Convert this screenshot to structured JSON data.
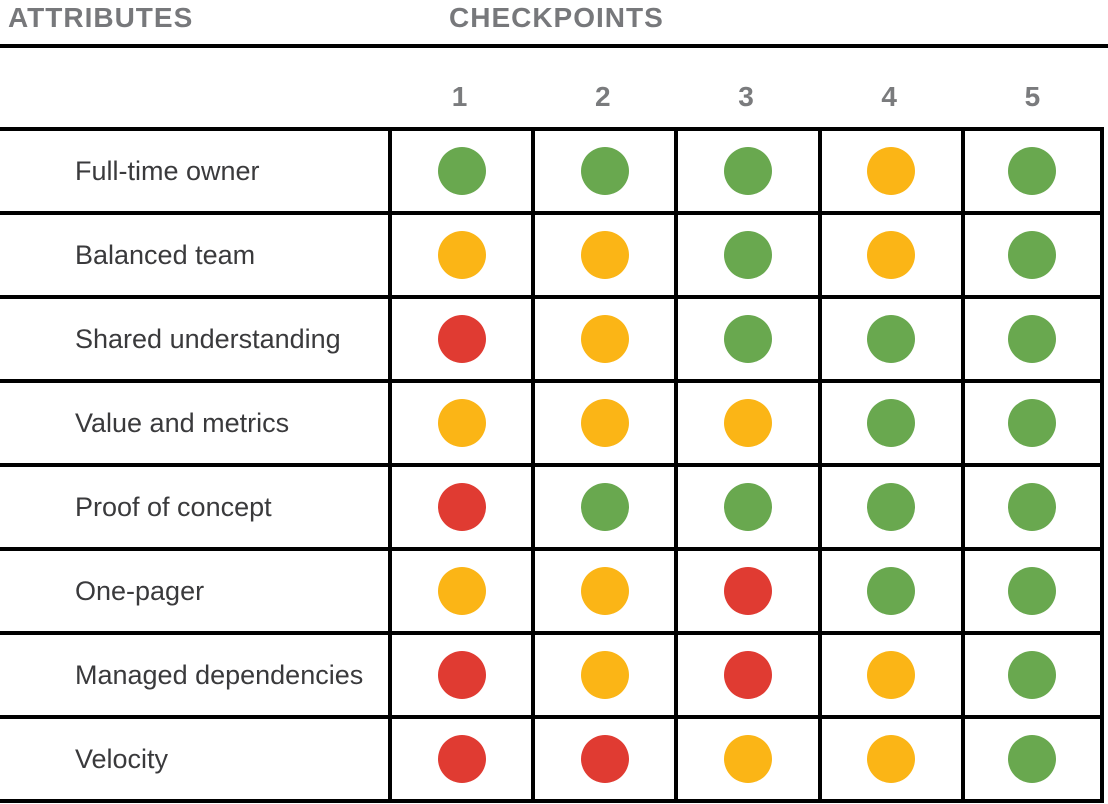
{
  "header": {
    "attributes_label": "ATTRIBUTES",
    "checkpoints_label": "CHECKPOINTS"
  },
  "checkpoints": [
    "1",
    "2",
    "3",
    "4",
    "5"
  ],
  "rows": [
    {
      "label": "Full-time owner",
      "statuses": [
        "green",
        "green",
        "green",
        "yellow",
        "green"
      ]
    },
    {
      "label": "Balanced team",
      "statuses": [
        "yellow",
        "yellow",
        "green",
        "yellow",
        "green"
      ]
    },
    {
      "label": "Shared understanding",
      "statuses": [
        "red",
        "yellow",
        "green",
        "green",
        "green"
      ]
    },
    {
      "label": "Value and metrics",
      "statuses": [
        "yellow",
        "yellow",
        "yellow",
        "green",
        "green"
      ]
    },
    {
      "label": "Proof of concept",
      "statuses": [
        "red",
        "green",
        "green",
        "green",
        "green"
      ]
    },
    {
      "label": "One-pager",
      "statuses": [
        "yellow",
        "yellow",
        "red",
        "green",
        "green"
      ]
    },
    {
      "label": "Managed dependencies",
      "statuses": [
        "red",
        "yellow",
        "red",
        "yellow",
        "green"
      ]
    },
    {
      "label": "Velocity",
      "statuses": [
        "red",
        "red",
        "yellow",
        "yellow",
        "green"
      ]
    }
  ],
  "status_colors": {
    "green": "#69a84f",
    "yellow": "#fbb516",
    "red": "#e03b32"
  },
  "ui_colors": {
    "header_text": "#77787b",
    "number_text": "#7a7b7d",
    "label_text": "#3a3a3c",
    "grid_line": "#000000",
    "background": "#ffffff"
  },
  "chart_data": {
    "type": "heatmap",
    "title": "",
    "xlabel": "CHECKPOINTS",
    "ylabel": "ATTRIBUTES",
    "x_categories": [
      "1",
      "2",
      "3",
      "4",
      "5"
    ],
    "y_categories": [
      "Full-time owner",
      "Balanced team",
      "Shared understanding",
      "Value and metrics",
      "Proof of concept",
      "One-pager",
      "Managed dependencies",
      "Velocity"
    ],
    "values": [
      [
        "green",
        "green",
        "green",
        "yellow",
        "green"
      ],
      [
        "yellow",
        "yellow",
        "green",
        "yellow",
        "green"
      ],
      [
        "red",
        "yellow",
        "green",
        "green",
        "green"
      ],
      [
        "yellow",
        "yellow",
        "yellow",
        "green",
        "green"
      ],
      [
        "red",
        "green",
        "green",
        "green",
        "green"
      ],
      [
        "yellow",
        "yellow",
        "red",
        "green",
        "green"
      ],
      [
        "red",
        "yellow",
        "red",
        "yellow",
        "green"
      ],
      [
        "red",
        "red",
        "yellow",
        "yellow",
        "green"
      ]
    ],
    "value_colors": {
      "green": "#69a84f",
      "yellow": "#fbb516",
      "red": "#e03b32"
    },
    "grid": true,
    "legend": false
  }
}
